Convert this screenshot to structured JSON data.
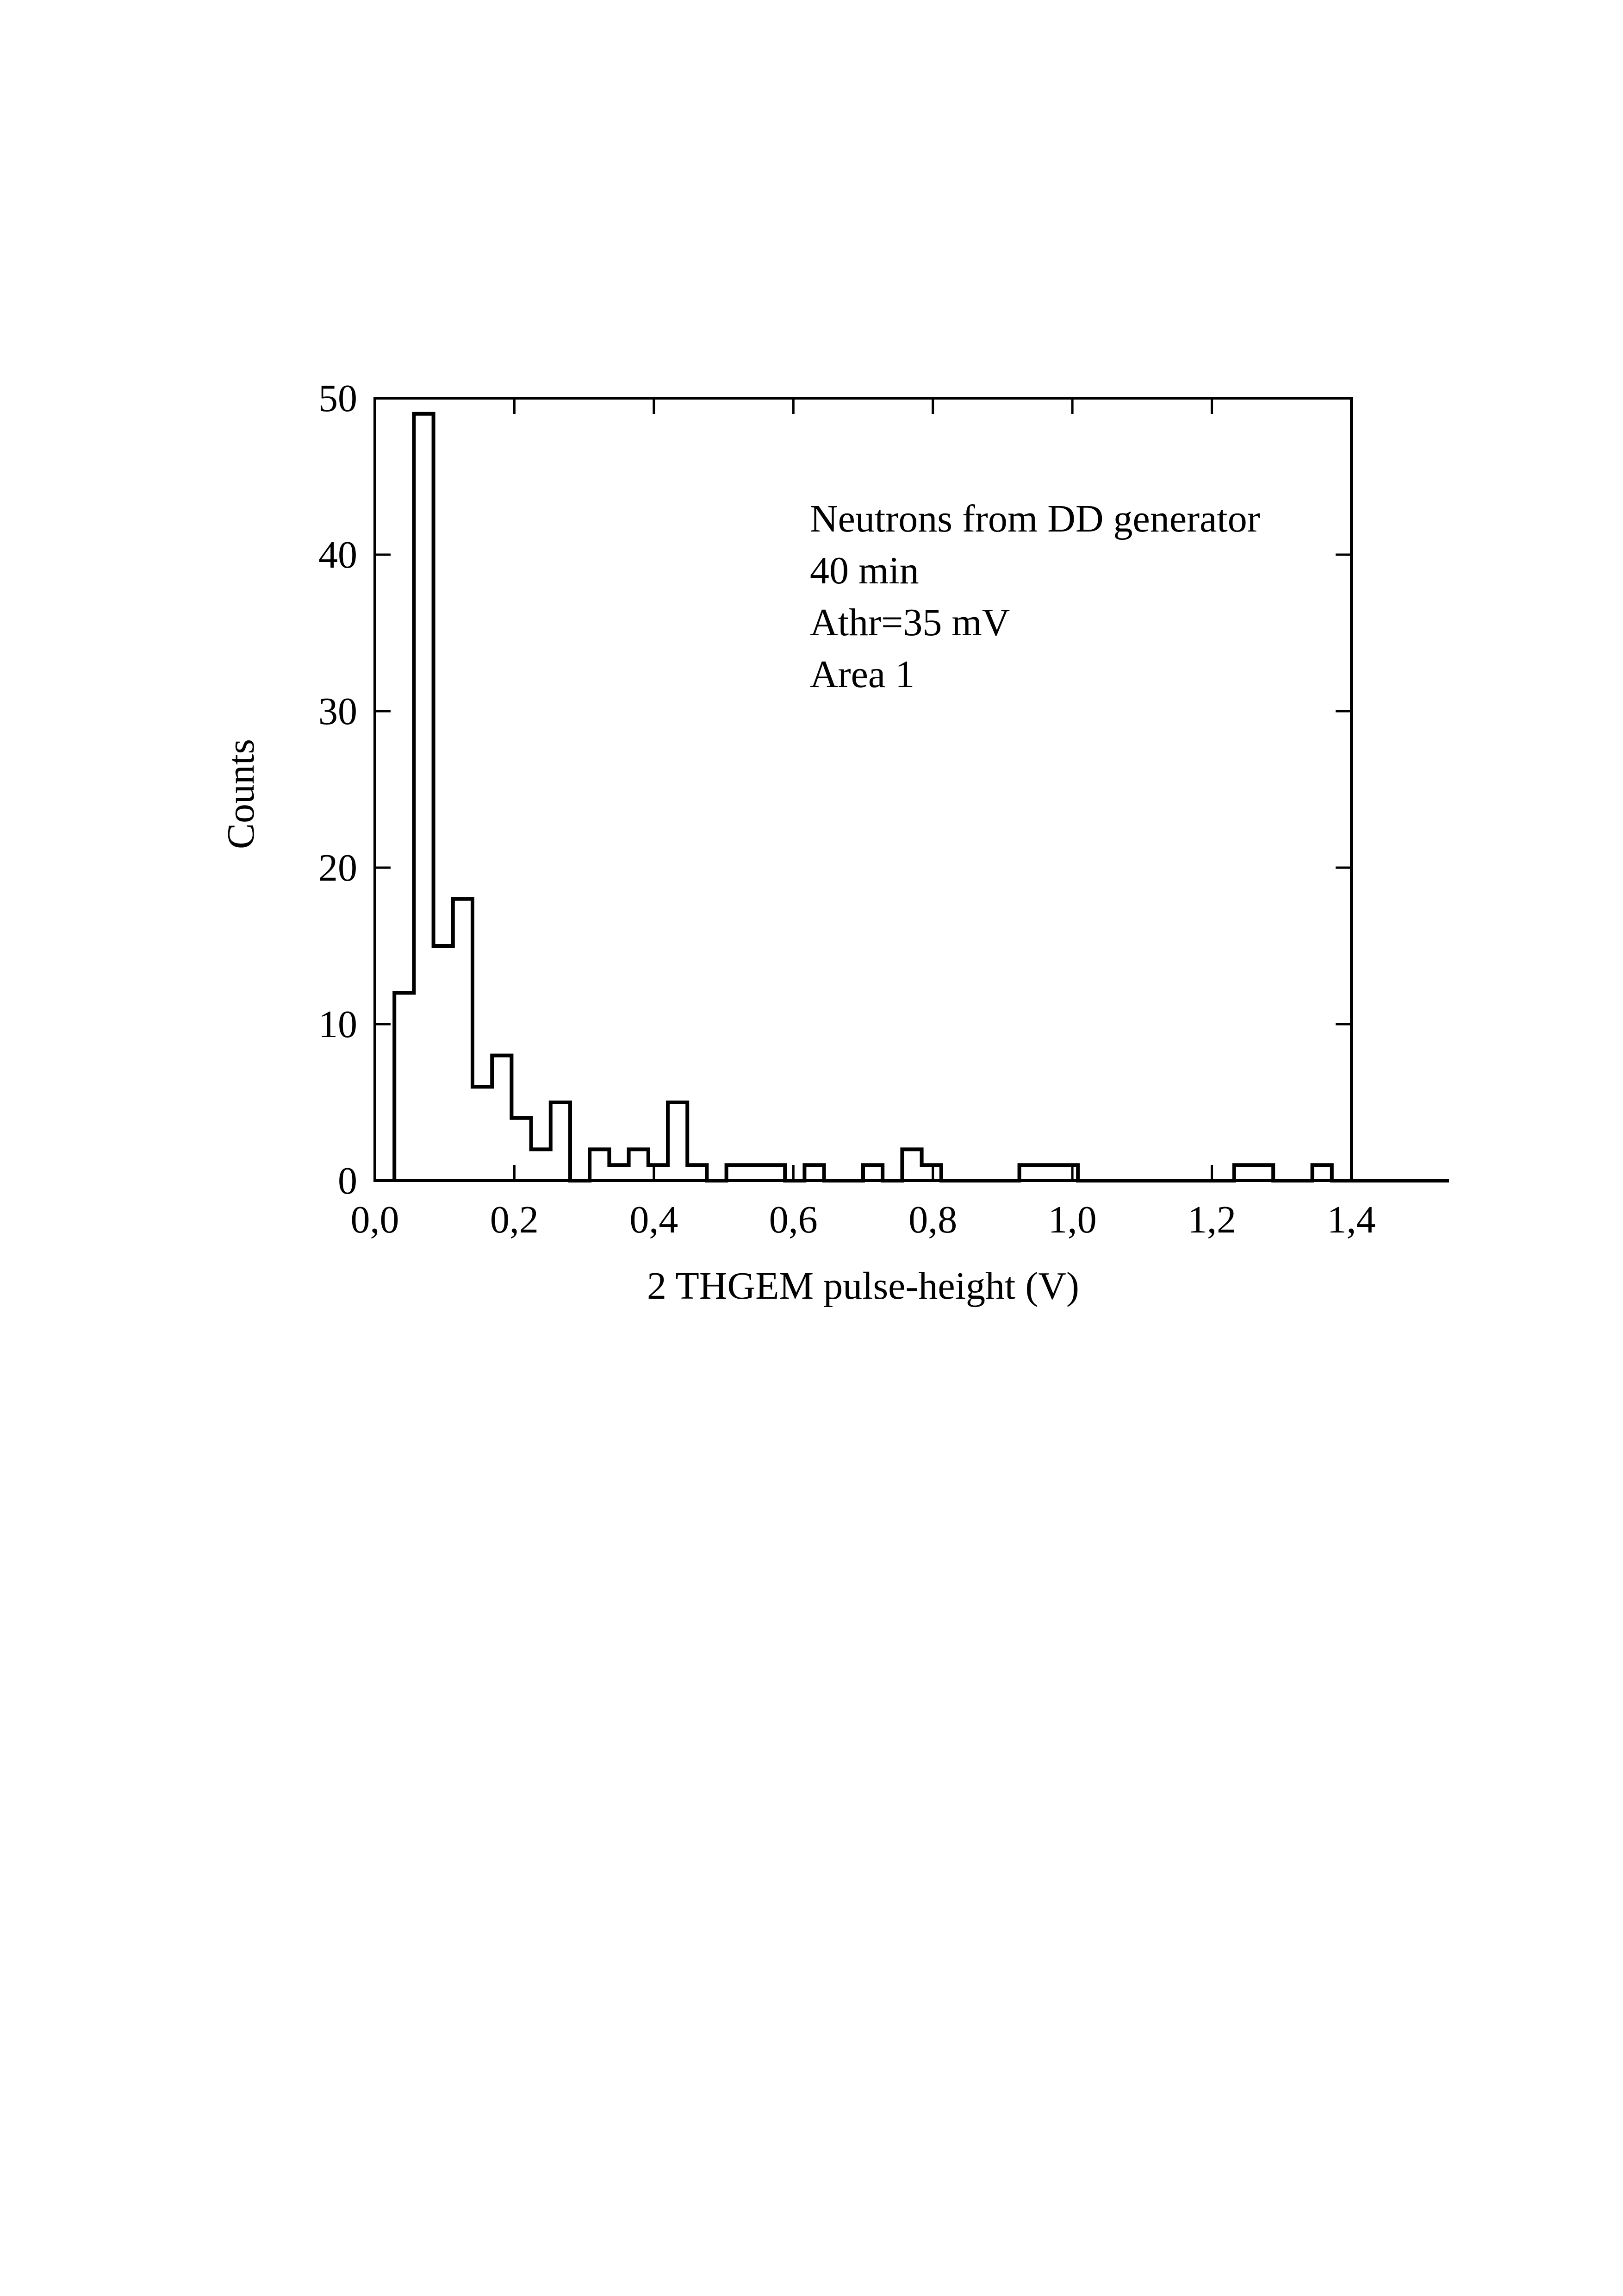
{
  "chart_data": {
    "type": "histogram",
    "title": "",
    "xlabel": "2 THGEM pulse-height (V)",
    "ylabel": "Counts",
    "xlim": [
      0.0,
      1.4
    ],
    "ylim": [
      0,
      50
    ],
    "x_ticks": [
      {
        "value": 0.0,
        "label": "0,0"
      },
      {
        "value": 0.2,
        "label": "0,2"
      },
      {
        "value": 0.4,
        "label": "0,4"
      },
      {
        "value": 0.6,
        "label": "0,6"
      },
      {
        "value": 0.8,
        "label": "0,8"
      },
      {
        "value": 1.0,
        "label": "1,0"
      },
      {
        "value": 1.2,
        "label": "1,2"
      },
      {
        "value": 1.4,
        "label": "1,4"
      }
    ],
    "y_ticks": [
      {
        "value": 0,
        "label": "0"
      },
      {
        "value": 10,
        "label": "10"
      },
      {
        "value": 20,
        "label": "20"
      },
      {
        "value": 30,
        "label": "30"
      },
      {
        "value": 40,
        "label": "40"
      },
      {
        "value": 50,
        "label": "50"
      }
    ],
    "grid": false,
    "bin_width": 0.028,
    "bin_start": 0.028,
    "counts": [
      12,
      49,
      15,
      18,
      6,
      8,
      4,
      2,
      5,
      0,
      2,
      1,
      2,
      1,
      5,
      1,
      0,
      1,
      1,
      1,
      0,
      1,
      0,
      0,
      1,
      0,
      2,
      1,
      0,
      0,
      0,
      0,
      1,
      1,
      1,
      0,
      0,
      0,
      0,
      0,
      0,
      0,
      0,
      1,
      1,
      0,
      0,
      1,
      0,
      0,
      0,
      0,
      0,
      0
    ],
    "annotations": [
      "Neutrons from DD generator",
      "40 min",
      "Athr=35 mV",
      "Area 1"
    ]
  }
}
